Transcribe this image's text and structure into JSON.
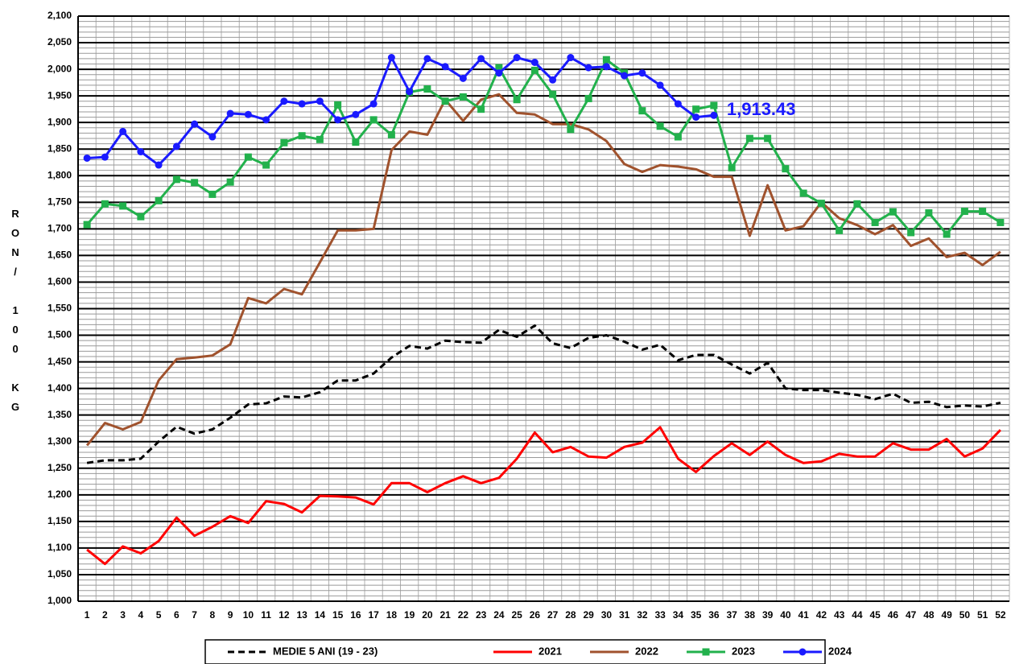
{
  "chart_data": {
    "type": "line",
    "y_label": "RON/ 100 KG",
    "annotation": "1,913.43",
    "annotation_series": 4,
    "categories": [
      "1",
      "2",
      "3",
      "4",
      "5",
      "6",
      "7",
      "8",
      "9",
      "10",
      "11",
      "12",
      "13",
      "14",
      "15",
      "16",
      "17",
      "18",
      "19",
      "20",
      "21",
      "22",
      "23",
      "24",
      "25",
      "26",
      "27",
      "28",
      "29",
      "30",
      "31",
      "32",
      "33",
      "34",
      "35",
      "36",
      "37",
      "38",
      "39",
      "40",
      "41",
      "42",
      "43",
      "44",
      "45",
      "46",
      "47",
      "48",
      "49",
      "50",
      "51",
      "52"
    ],
    "ylim": [
      1000,
      2100
    ],
    "yticks": [
      {
        "value": 1000,
        "label": "1,000"
      },
      {
        "value": 1050,
        "label": "1,050"
      },
      {
        "value": 1100,
        "label": "1,100"
      },
      {
        "value": 1150,
        "label": "1,150"
      },
      {
        "value": 1200,
        "label": "1,200"
      },
      {
        "value": 1250,
        "label": "1,250"
      },
      {
        "value": 1300,
        "label": "1,300"
      },
      {
        "value": 1350,
        "label": "1,350"
      },
      {
        "value": 1400,
        "label": "1,400"
      },
      {
        "value": 1450,
        "label": "1,450"
      },
      {
        "value": 1500,
        "label": "1,500"
      },
      {
        "value": 1550,
        "label": "1,550"
      },
      {
        "value": 1600,
        "label": "1,600"
      },
      {
        "value": 1650,
        "label": "1,650"
      },
      {
        "value": 1700,
        "label": "1,700"
      },
      {
        "value": 1750,
        "label": "1,750"
      },
      {
        "value": 1800,
        "label": "1,800"
      },
      {
        "value": 1850,
        "label": "1,850"
      },
      {
        "value": 1900,
        "label": "1,900"
      },
      {
        "value": 1950,
        "label": "1,950"
      },
      {
        "value": 2000,
        "label": "2,000"
      },
      {
        "value": 2050,
        "label": "2,050"
      },
      {
        "value": 2100,
        "label": "2,100"
      }
    ],
    "grid": true,
    "legend": "bottom",
    "series": [
      {
        "name": "MEDIE 5 ANI (19 - 23)",
        "color": "#000000",
        "dash": true,
        "marker": null,
        "values": [
          1260,
          1265,
          1265,
          1268,
          1300,
          1328,
          1315,
          1323,
          1345,
          1370,
          1372,
          1385,
          1383,
          1393,
          1415,
          1415,
          1428,
          1458,
          1480,
          1475,
          1490,
          1487,
          1486,
          1510,
          1497,
          1518,
          1485,
          1476,
          1495,
          1500,
          1488,
          1473,
          1482,
          1453,
          1463,
          1463,
          1445,
          1428,
          1448,
          1400,
          1397,
          1397,
          1392,
          1388,
          1380,
          1390,
          1373,
          1375,
          1365,
          1368,
          1366,
          1373
        ]
      },
      {
        "name": "2021",
        "color": "#ff0000",
        "dash": false,
        "marker": null,
        "values": [
          1097,
          1070,
          1103,
          1090,
          1113,
          1157,
          1123,
          1140,
          1160,
          1147,
          1188,
          1183,
          1167,
          1198,
          1197,
          1195,
          1182,
          1222,
          1222,
          1205,
          1222,
          1235,
          1222,
          1232,
          1268,
          1317,
          1280,
          1290,
          1272,
          1270,
          1290,
          1298,
          1327,
          1268,
          1243,
          1273,
          1297,
          1275,
          1300,
          1275,
          1260,
          1263,
          1277,
          1272,
          1272,
          1297,
          1285,
          1285,
          1305,
          1272,
          1287,
          1322
        ]
      },
      {
        "name": "2022",
        "color": "#a0522d",
        "dash": false,
        "marker": null,
        "values": [
          1293,
          1335,
          1323,
          1337,
          1415,
          1455,
          1458,
          1462,
          1483,
          1570,
          1560,
          1587,
          1577,
          1637,
          1697,
          1697,
          1700,
          1848,
          1883,
          1877,
          1943,
          1903,
          1943,
          1953,
          1918,
          1915,
          1897,
          1897,
          1887,
          1865,
          1822,
          1807,
          1820,
          1817,
          1812,
          1798,
          1798,
          1687,
          1782,
          1697,
          1705,
          1750,
          1720,
          1707,
          1690,
          1707,
          1668,
          1682,
          1647,
          1655,
          1632,
          1657
        ]
      },
      {
        "name": "2023",
        "color": "#22b14c",
        "dash": false,
        "marker": "square",
        "values": [
          1708,
          1747,
          1743,
          1723,
          1753,
          1793,
          1787,
          1765,
          1788,
          1835,
          1820,
          1862,
          1875,
          1868,
          1933,
          1863,
          1905,
          1877,
          1957,
          1963,
          1940,
          1948,
          1925,
          2003,
          1943,
          1998,
          1953,
          1887,
          1945,
          2018,
          1993,
          1922,
          1893,
          1873,
          1925,
          1932,
          1815,
          1870,
          1870,
          1813,
          1767,
          1748,
          1697,
          1747,
          1712,
          1732,
          1693,
          1730,
          1690,
          1733,
          1733,
          1712
        ]
      },
      {
        "name": "2024",
        "color": "#1a1aff",
        "dash": false,
        "marker": "circle",
        "values": [
          1833,
          1835,
          1883,
          1845,
          1820,
          1855,
          1897,
          1873,
          1917,
          1915,
          1905,
          1940,
          1935,
          1940,
          1905,
          1915,
          1935,
          2022,
          1958,
          2020,
          2005,
          1983,
          2020,
          1993,
          2022,
          2013,
          1980,
          2022,
          2003,
          2005,
          1988,
          1993,
          1970,
          1935,
          1910,
          1913.43,
          null,
          null,
          null,
          null,
          null,
          null,
          null,
          null,
          null,
          null,
          null,
          null,
          null,
          null,
          null,
          null
        ]
      }
    ]
  }
}
